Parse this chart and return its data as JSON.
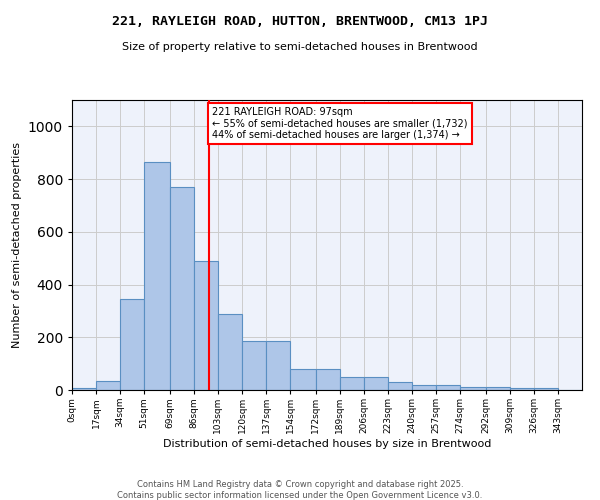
{
  "title1": "221, RAYLEIGH ROAD, HUTTON, BRENTWOOD, CM13 1PJ",
  "title2": "Size of property relative to semi-detached houses in Brentwood",
  "xlabel": "Distribution of semi-detached houses by size in Brentwood",
  "ylabel": "Number of semi-detached properties",
  "footer1": "Contains HM Land Registry data © Crown copyright and database right 2025.",
  "footer2": "Contains public sector information licensed under the Open Government Licence v3.0.",
  "bar_labels": [
    "0sqm",
    "17sqm",
    "34sqm",
    "51sqm",
    "69sqm",
    "86sqm",
    "103sqm",
    "120sqm",
    "137sqm",
    "154sqm",
    "172sqm",
    "189sqm",
    "206sqm",
    "223sqm",
    "240sqm",
    "257sqm",
    "274sqm",
    "292sqm",
    "309sqm",
    "326sqm",
    "343sqm"
  ],
  "bar_values": [
    8,
    35,
    345,
    865,
    770,
    490,
    290,
    185,
    185,
    80,
    80,
    48,
    50,
    32,
    20,
    20,
    12,
    12,
    8,
    8,
    0
  ],
  "bar_color": "#aec6e8",
  "bar_edge_color": "#5a8fc2",
  "grid_color": "#cccccc",
  "bg_color": "#eef2fb",
  "annotation_text": "221 RAYLEIGH ROAD: 97sqm\n← 55% of semi-detached houses are smaller (1,732)\n44% of semi-detached houses are larger (1,374) →",
  "vline_x": 97,
  "bin_edges": [
    0,
    17,
    34,
    51,
    69,
    86,
    103,
    120,
    137,
    154,
    172,
    189,
    206,
    223,
    240,
    257,
    274,
    292,
    309,
    326,
    343,
    360
  ],
  "ylim": [
    0,
    1100
  ],
  "annotation_box_color": "white",
  "annotation_box_edge": "red",
  "vline_color": "red"
}
